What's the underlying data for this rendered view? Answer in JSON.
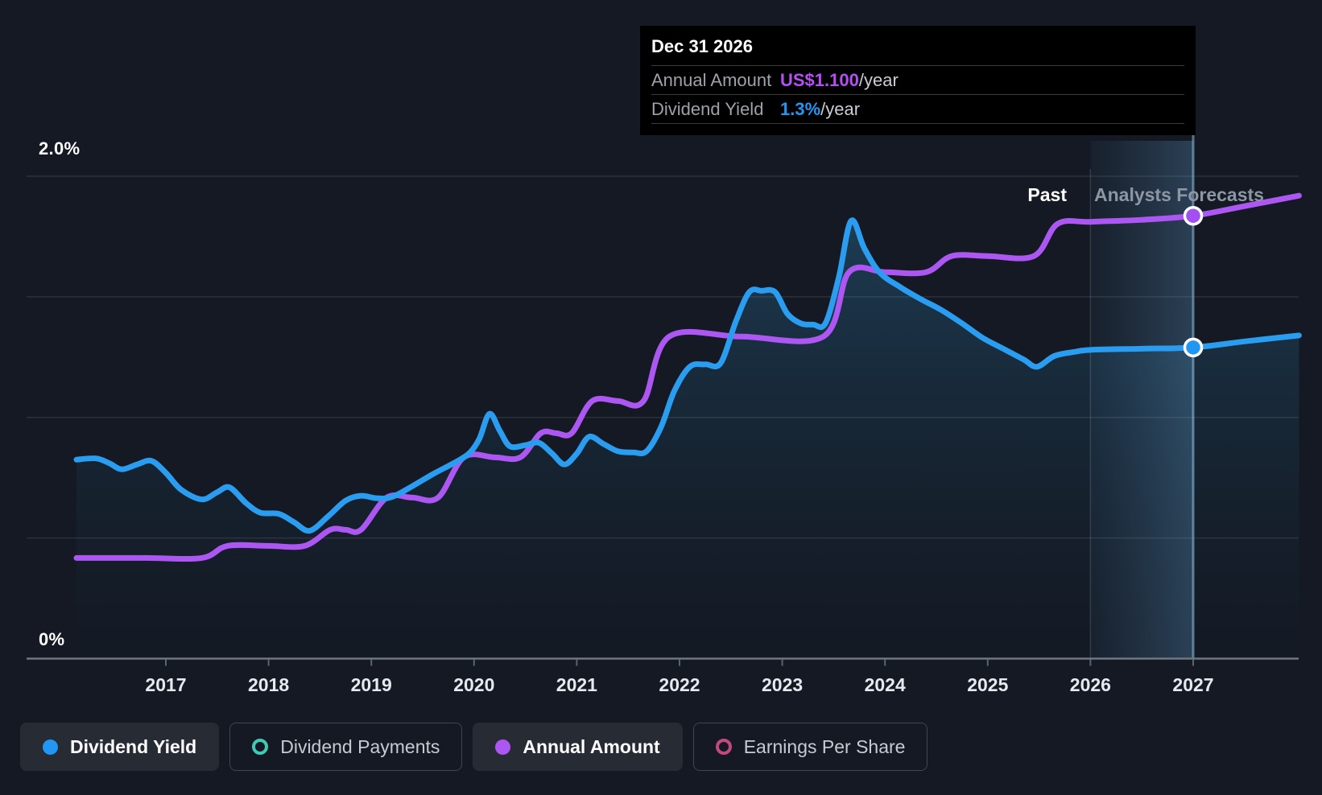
{
  "colors": {
    "background": "#141923",
    "dividend_yield_blue": "#2b9df0",
    "annual_amount_purple": "#ad57f2",
    "dividend_payments_teal": "#41c9b6",
    "earnings_per_share_pink": "#c04a80",
    "tooltip_background": "#000000",
    "tooltip_value_purple": "#b44ff2",
    "tooltip_value_blue": "#2196f3"
  },
  "tooltip": {
    "date": "Dec 31 2026",
    "rows": [
      {
        "label": "Annual Amount",
        "value": "US$1.100",
        "suffix": "/year"
      },
      {
        "label": "Dividend Yield",
        "value": "1.3%",
        "suffix": "/year"
      }
    ]
  },
  "annotations": {
    "past": "Past",
    "forecasts": "Analysts Forecasts"
  },
  "axis": {
    "y_labels": [
      "2.0%",
      "0%"
    ],
    "x_labels": [
      "2017",
      "2018",
      "2019",
      "2020",
      "2021",
      "2022",
      "2023",
      "2024",
      "2025",
      "2026",
      "2027"
    ]
  },
  "legend": [
    {
      "label": "Dividend Yield",
      "marker": "dot",
      "color": "#2196f3",
      "active": true
    },
    {
      "label": "Dividend Payments",
      "marker": "ring",
      "color": "#41c9b6",
      "active": false
    },
    {
      "label": "Annual Amount",
      "marker": "dot",
      "color": "#ad57f2",
      "active": true
    },
    {
      "label": "Earnings Per Share",
      "marker": "ring",
      "color": "#c04a80",
      "active": false
    }
  ],
  "chart_data": {
    "type": "line",
    "title": "Dividend history and forecast",
    "x_range": [
      2016.13,
      2028.03
    ],
    "x_tick_years": [
      2017,
      2018,
      2019,
      2020,
      2021,
      2022,
      2023,
      2024,
      2025,
      2026,
      2027
    ],
    "left_axis": {
      "unit": "%",
      "min": 0,
      "max": 2.0,
      "gridline_step": 0.5,
      "labeled_ticks": [
        "2.0%",
        "0%"
      ]
    },
    "value_mapping_note": "Annual Amount (US$/yr) is overlaid on the % axis; US$1.00/yr spans 1.669% of the left axis",
    "past_forecast_divider_x": 2026.0,
    "hover_band_x": [
      2026.0,
      2027.0
    ],
    "hover_x": 2027.0,
    "legend_position": "bottom-left",
    "grid": true,
    "series": [
      {
        "name": "Dividend Yield",
        "unit": "%",
        "color": "#2b9df0",
        "area_fill": true,
        "points": [
          [
            2016.13,
            0.825
          ],
          [
            2016.32,
            0.83
          ],
          [
            2016.45,
            0.81
          ],
          [
            2016.57,
            0.785
          ],
          [
            2016.72,
            0.805
          ],
          [
            2016.86,
            0.82
          ],
          [
            2017.0,
            0.77
          ],
          [
            2017.15,
            0.7
          ],
          [
            2017.35,
            0.66
          ],
          [
            2017.5,
            0.69
          ],
          [
            2017.62,
            0.71
          ],
          [
            2017.78,
            0.645
          ],
          [
            2017.92,
            0.605
          ],
          [
            2018.1,
            0.6
          ],
          [
            2018.25,
            0.565
          ],
          [
            2018.4,
            0.53
          ],
          [
            2018.58,
            0.59
          ],
          [
            2018.75,
            0.655
          ],
          [
            2018.9,
            0.675
          ],
          [
            2019.05,
            0.665
          ],
          [
            2019.2,
            0.67
          ],
          [
            2019.4,
            0.715
          ],
          [
            2019.6,
            0.765
          ],
          [
            2019.8,
            0.81
          ],
          [
            2019.95,
            0.85
          ],
          [
            2020.05,
            0.91
          ],
          [
            2020.15,
            1.015
          ],
          [
            2020.25,
            0.945
          ],
          [
            2020.35,
            0.88
          ],
          [
            2020.5,
            0.885
          ],
          [
            2020.63,
            0.895
          ],
          [
            2020.76,
            0.85
          ],
          [
            2020.88,
            0.805
          ],
          [
            2021.0,
            0.85
          ],
          [
            2021.12,
            0.92
          ],
          [
            2021.26,
            0.89
          ],
          [
            2021.4,
            0.86
          ],
          [
            2021.55,
            0.855
          ],
          [
            2021.68,
            0.86
          ],
          [
            2021.82,
            0.96
          ],
          [
            2021.95,
            1.11
          ],
          [
            2022.1,
            1.21
          ],
          [
            2022.25,
            1.22
          ],
          [
            2022.4,
            1.225
          ],
          [
            2022.55,
            1.4
          ],
          [
            2022.68,
            1.52
          ],
          [
            2022.8,
            1.525
          ],
          [
            2022.93,
            1.52
          ],
          [
            2023.05,
            1.43
          ],
          [
            2023.18,
            1.39
          ],
          [
            2023.3,
            1.385
          ],
          [
            2023.42,
            1.39
          ],
          [
            2023.55,
            1.58
          ],
          [
            2023.67,
            1.815
          ],
          [
            2023.8,
            1.7
          ],
          [
            2023.95,
            1.6
          ],
          [
            2024.15,
            1.54
          ],
          [
            2024.35,
            1.49
          ],
          [
            2024.55,
            1.445
          ],
          [
            2024.75,
            1.39
          ],
          [
            2024.95,
            1.33
          ],
          [
            2025.15,
            1.285
          ],
          [
            2025.35,
            1.24
          ],
          [
            2025.48,
            1.21
          ],
          [
            2025.65,
            1.255
          ],
          [
            2025.85,
            1.272
          ],
          [
            2026.0,
            1.28
          ],
          [
            2026.5,
            1.285
          ],
          [
            2027.0,
            1.29
          ],
          [
            2027.5,
            1.315
          ],
          [
            2028.03,
            1.34
          ]
        ]
      },
      {
        "name": "Annual Amount",
        "unit": "US$/year",
        "color": "#ad57f2",
        "area_fill": false,
        "points": [
          [
            2016.13,
            0.25
          ],
          [
            2016.8,
            0.25
          ],
          [
            2017.35,
            0.25
          ],
          [
            2017.6,
            0.28
          ],
          [
            2018.0,
            0.28
          ],
          [
            2018.35,
            0.28
          ],
          [
            2018.6,
            0.32
          ],
          [
            2018.75,
            0.32
          ],
          [
            2018.9,
            0.32
          ],
          [
            2019.15,
            0.4
          ],
          [
            2019.4,
            0.4
          ],
          [
            2019.65,
            0.4
          ],
          [
            2019.9,
            0.5
          ],
          [
            2020.2,
            0.5
          ],
          [
            2020.45,
            0.5
          ],
          [
            2020.65,
            0.56
          ],
          [
            2020.8,
            0.56
          ],
          [
            2020.95,
            0.56
          ],
          [
            2021.15,
            0.64
          ],
          [
            2021.4,
            0.64
          ],
          [
            2021.65,
            0.64
          ],
          [
            2021.9,
            0.8
          ],
          [
            2022.6,
            0.8
          ],
          [
            2023.4,
            0.8
          ],
          [
            2023.65,
            0.96
          ],
          [
            2024.0,
            0.96
          ],
          [
            2024.4,
            0.96
          ],
          [
            2024.65,
            1.0
          ],
          [
            2025.0,
            1.0
          ],
          [
            2025.45,
            1.0
          ],
          [
            2025.68,
            1.08
          ],
          [
            2026.0,
            1.085
          ],
          [
            2026.5,
            1.09
          ],
          [
            2027.0,
            1.1
          ],
          [
            2027.5,
            1.124
          ],
          [
            2028.03,
            1.15
          ]
        ]
      }
    ],
    "markers": [
      {
        "series": "Annual Amount",
        "x": 2027.0,
        "value": 1.1,
        "display": "US$1.100/year"
      },
      {
        "series": "Dividend Yield",
        "x": 2027.0,
        "value": 1.29,
        "display": "1.3%/year"
      }
    ]
  }
}
